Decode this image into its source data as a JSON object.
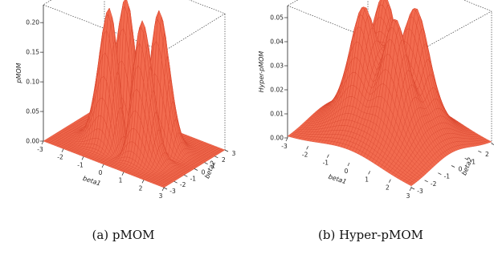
{
  "chart_data": [
    {
      "type": "surface3d",
      "caption": "(a) pMOM",
      "xlabel": "beta1",
      "ylabel": "beta2",
      "zlabel": "pMOM",
      "x_ticks": [
        "-3",
        "-2",
        "-1",
        "0",
        "1",
        "2",
        "3"
      ],
      "y_ticks": [
        "-3",
        "-2",
        "-1",
        "0",
        "1",
        "2",
        "3"
      ],
      "z_ticks": [
        "0.00",
        "0.05",
        "0.10",
        "0.15",
        "0.20"
      ],
      "zlim": [
        0,
        0.23
      ],
      "x_range": [
        -3,
        3
      ],
      "y_range": [
        -3,
        3
      ],
      "peak_value": 0.23,
      "surface_color": "#f26b4f",
      "mesh_color": "#d9452d"
    },
    {
      "type": "surface3d",
      "caption": "(b) Hyper-pMOM",
      "xlabel": "beta1",
      "ylabel": "beta2",
      "zlabel": "Hyper-pMOM",
      "x_ticks": [
        "-3",
        "-2",
        "-1",
        "0",
        "1",
        "2",
        "3"
      ],
      "y_ticks": [
        "-3",
        "-2",
        "-1",
        "0",
        "1",
        "2",
        "3"
      ],
      "z_ticks": [
        "0.00",
        "0.01",
        "0.02",
        "0.03",
        "0.04",
        "0.05"
      ],
      "zlim": [
        0,
        0.055
      ],
      "x_range": [
        -3,
        3
      ],
      "y_range": [
        -3,
        3
      ],
      "peak_value": 0.055,
      "surface_color": "#f26b4f",
      "mesh_color": "#d9452d"
    }
  ]
}
